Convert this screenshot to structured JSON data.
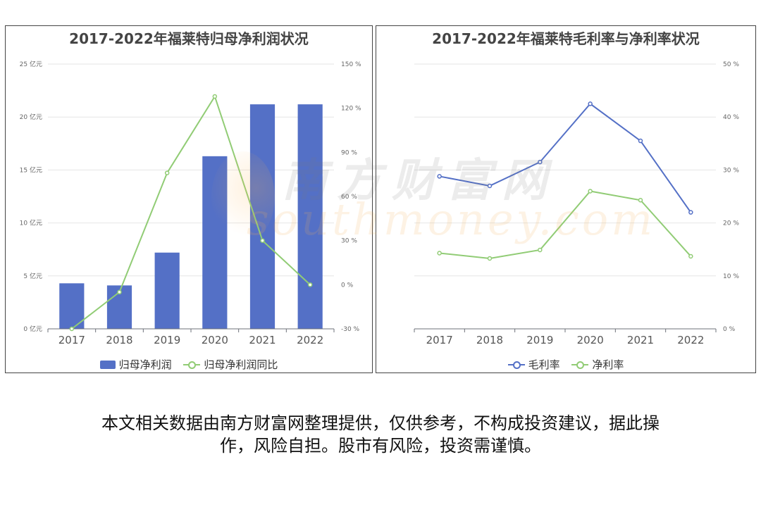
{
  "chart_data": [
    {
      "type": "bar",
      "title": "2017-2022年福莱特归母净利润状况",
      "categories": [
        "2017",
        "2018",
        "2019",
        "2020",
        "2021",
        "2022"
      ],
      "series": [
        {
          "name": "归母净利润",
          "type": "bar",
          "axis": "left",
          "color": "#5470c6",
          "values": [
            4.3,
            4.1,
            7.2,
            16.3,
            21.2,
            21.2
          ]
        },
        {
          "name": "归母净利润同比",
          "type": "line",
          "axis": "right",
          "color": "#91cc75",
          "values": [
            -30,
            -5,
            76,
            128,
            30,
            0
          ]
        }
      ],
      "y_left": {
        "min": 0,
        "max": 25,
        "ticks": [
          "0 亿元",
          "5 亿元",
          "10 亿元",
          "15 亿元",
          "20 亿元",
          "25 亿元"
        ]
      },
      "y_right": {
        "min": -30,
        "max": 150,
        "ticks": [
          "-30 %",
          "0 %",
          "30 %",
          "60 %",
          "90 %",
          "120 %",
          "150 %"
        ]
      },
      "legend": "bottom",
      "grid": true
    },
    {
      "type": "line",
      "title": "2017-2022年福莱特毛利率与净利率状况",
      "categories": [
        "2017",
        "2018",
        "2019",
        "2020",
        "2021",
        "2022"
      ],
      "series": [
        {
          "name": "毛利率",
          "color": "#5470c6",
          "values": [
            28.8,
            27.0,
            31.5,
            42.5,
            35.5,
            22.0
          ]
        },
        {
          "name": "净利率",
          "color": "#91cc75",
          "values": [
            14.3,
            13.3,
            14.9,
            26.0,
            24.3,
            13.7
          ]
        }
      ],
      "y_right": {
        "min": 0,
        "max": 50,
        "ticks": [
          "0 %",
          "10 %",
          "20 %",
          "30 %",
          "40 %",
          "50 %"
        ]
      },
      "legend": "bottom",
      "grid": true
    }
  ],
  "watermark": {
    "cn": "南方财富网",
    "en": "southmoney.com"
  },
  "disclaimer": {
    "line1": "本文相关数据由南方财富网整理提供，仅供参考，不构成投资建议，据此操",
    "line2": "作，风险自担。股市有风险，投资需谨慎。"
  }
}
